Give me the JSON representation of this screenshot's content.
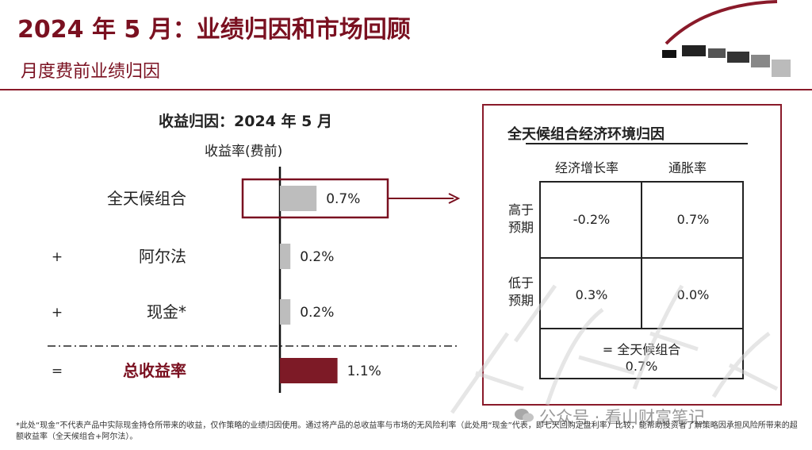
{
  "header": {
    "title": "2024 年 5 月：业绩归因和市场回顾",
    "subtitle": "月度费前业绩归因"
  },
  "chart_data": {
    "type": "bar",
    "title": "收益归因：2024 年 5 月",
    "subtitle": "收益率(费前)",
    "orientation": "horizontal",
    "categories": [
      "全天候组合",
      "阿尔法",
      "现金*",
      "总收益率"
    ],
    "prefixes": [
      "",
      "+",
      "+",
      "="
    ],
    "values": [
      0.7,
      0.2,
      0.2,
      1.1
    ],
    "value_labels": [
      "0.7%",
      "0.2%",
      "0.2%",
      "1.1%"
    ],
    "colors": [
      "#bdbdbd",
      "#bdbdbd",
      "#bdbdbd",
      "#7d1a26"
    ],
    "highlight_category": "全天候组合",
    "total_category": "总收益率",
    "unit": "%"
  },
  "matrix": {
    "title": "全天候组合经济环境归因",
    "columns": [
      "经济增长率",
      "通胀率"
    ],
    "rows": [
      {
        "label": [
          "高于",
          "预期"
        ],
        "values": [
          "-0.2%",
          "0.7%"
        ]
      },
      {
        "label": [
          "低于",
          "预期"
        ],
        "values": [
          "0.3%",
          "0.0%"
        ]
      }
    ],
    "total_label": "= 全天候组合",
    "total_value": "0.7%"
  },
  "footnote": "*此处“现金”不代表产品中实际现金持仓所带来的收益，仅作策略的业绩归因使用。通过将产品的总收益率与市场的无风险利率（此处用“现金”代表，即七天回购定盘利率）比较，能帮助投资者了解策略因承担风险所带来的超额收益率（全天候组合+阿尔法）。",
  "watermark": "公众号 · 看山财富笔记",
  "colors": {
    "brand": "#7a1020",
    "bar": "#bdbdbd",
    "total_bar": "#7d1a26"
  }
}
